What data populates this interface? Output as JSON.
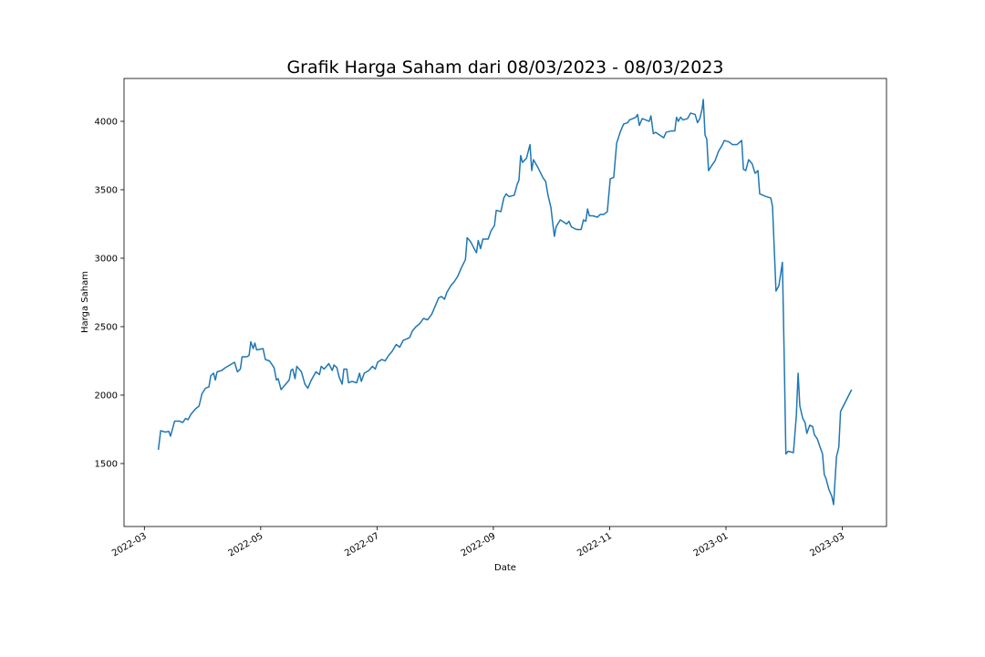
{
  "chart_data": {
    "type": "line",
    "title": "Grafik Harga Saham dari 08/03/2023 - 08/03/2023",
    "x_label": "Date",
    "y_label": "Harga Saham",
    "x": [
      0.24,
      0.28,
      0.36,
      0.42,
      0.45,
      0.52,
      0.6,
      0.66,
      0.71,
      0.75,
      0.8,
      0.88,
      0.94,
      0.99,
      1.05,
      1.11,
      1.14,
      1.19,
      1.22,
      1.25,
      1.33,
      1.39,
      1.47,
      1.55,
      1.6,
      1.65,
      1.68,
      1.76,
      1.8,
      1.83,
      1.87,
      1.9,
      1.93,
      2.04,
      2.08,
      2.15,
      2.23,
      2.27,
      2.3,
      2.35,
      2.43,
      2.49,
      2.52,
      2.55,
      2.59,
      2.62,
      2.7,
      2.76,
      2.81,
      2.87,
      2.95,
      3.01,
      3.04,
      3.09,
      3.17,
      3.23,
      3.26,
      3.31,
      3.35,
      3.4,
      3.43,
      3.48,
      3.51,
      3.57,
      3.65,
      3.7,
      3.73,
      3.78,
      3.86,
      3.92,
      3.97,
      4.01,
      4.08,
      4.14,
      4.2,
      4.26,
      4.33,
      4.39,
      4.45,
      4.51,
      4.56,
      4.61,
      4.67,
      4.73,
      4.8,
      4.87,
      4.94,
      5.0,
      5.06,
      5.11,
      5.16,
      5.2,
      5.27,
      5.33,
      5.39,
      5.45,
      5.52,
      5.55,
      5.61,
      5.67,
      5.71,
      5.74,
      5.78,
      5.82,
      5.91,
      5.96,
      6.02,
      6.05,
      6.13,
      6.18,
      6.22,
      6.27,
      6.36,
      6.41,
      6.44,
      6.47,
      6.5,
      6.57,
      6.63,
      6.66,
      6.69,
      6.77,
      6.85,
      6.9,
      6.94,
      6.99,
      7.02,
      7.05,
      7.08,
      7.15,
      7.19,
      7.26,
      7.3,
      7.34,
      7.38,
      7.43,
      7.51,
      7.55,
      7.59,
      7.62,
      7.65,
      7.71,
      7.79,
      7.84,
      7.9,
      7.96,
      8.01,
      8.07,
      8.12,
      8.18,
      8.24,
      8.31,
      8.34,
      8.4,
      8.45,
      8.48,
      8.51,
      8.56,
      8.62,
      8.68,
      8.71,
      8.75,
      8.79,
      8.86,
      8.93,
      8.97,
      9.06,
      9.12,
      9.15,
      9.18,
      9.22,
      9.26,
      9.34,
      9.39,
      9.47,
      9.51,
      9.55,
      9.59,
      9.61,
      9.64,
      9.67,
      9.7,
      9.76,
      9.81,
      9.87,
      9.94,
      9.97,
      10.05,
      10.11,
      10.19,
      10.27,
      10.3,
      10.34,
      10.39,
      10.45,
      10.5,
      10.55,
      10.58,
      10.69,
      10.77,
      10.8,
      10.86,
      10.91,
      10.97,
      11.0,
      11.03,
      11.07,
      11.16,
      11.21,
      11.24,
      11.27,
      11.32,
      11.36,
      11.39,
      11.44,
      11.49,
      11.52,
      11.57,
      11.61,
      11.66,
      11.69,
      11.72,
      11.77,
      11.82,
      11.85,
      11.9,
      11.94,
      11.97,
      12.16
    ],
    "series": [
      {
        "color": "#1f77b4",
        "values": [
          1600,
          1740,
          1730,
          1735,
          1700,
          1810,
          1810,
          1800,
          1830,
          1820,
          1860,
          1900,
          1920,
          2010,
          2050,
          2060,
          2140,
          2160,
          2110,
          2170,
          2180,
          2200,
          2220,
          2240,
          2170,
          2190,
          2280,
          2280,
          2290,
          2390,
          2340,
          2380,
          2330,
          2340,
          2260,
          2250,
          2200,
          2110,
          2120,
          2040,
          2080,
          2110,
          2180,
          2190,
          2120,
          2210,
          2170,
          2080,
          2050,
          2110,
          2170,
          2150,
          2210,
          2190,
          2230,
          2180,
          2220,
          2200,
          2130,
          2080,
          2190,
          2190,
          2090,
          2100,
          2090,
          2160,
          2100,
          2160,
          2180,
          2210,
          2190,
          2240,
          2260,
          2250,
          2290,
          2320,
          2370,
          2350,
          2400,
          2410,
          2420,
          2470,
          2500,
          2520,
          2560,
          2550,
          2590,
          2650,
          2710,
          2720,
          2700,
          2750,
          2800,
          2830,
          2870,
          2930,
          2990,
          3150,
          3120,
          3070,
          3040,
          3130,
          3070,
          3140,
          3140,
          3200,
          3240,
          3350,
          3340,
          3440,
          3470,
          3450,
          3460,
          3540,
          3570,
          3750,
          3700,
          3730,
          3830,
          3640,
          3720,
          3660,
          3590,
          3560,
          3460,
          3370,
          3260,
          3160,
          3230,
          3280,
          3270,
          3250,
          3270,
          3230,
          3220,
          3210,
          3210,
          3280,
          3270,
          3360,
          3310,
          3310,
          3300,
          3320,
          3320,
          3340,
          3580,
          3590,
          3840,
          3920,
          3980,
          3990,
          4010,
          4020,
          4030,
          4050,
          3970,
          4020,
          4010,
          4000,
          4040,
          3910,
          3920,
          3900,
          3880,
          3920,
          3930,
          3930,
          4030,
          4000,
          4030,
          4010,
          4020,
          4060,
          4050,
          3990,
          4020,
          4090,
          4160,
          3900,
          3870,
          3640,
          3680,
          3710,
          3780,
          3830,
          3860,
          3850,
          3830,
          3830,
          3860,
          3650,
          3640,
          3720,
          3690,
          3620,
          3640,
          3470,
          3450,
          3440,
          3380,
          2760,
          2800,
          2970,
          2300,
          1570,
          1590,
          1580,
          1850,
          2160,
          1920,
          1830,
          1800,
          1720,
          1780,
          1770,
          1710,
          1680,
          1630,
          1570,
          1420,
          1390,
          1310,
          1260,
          1200,
          1550,
          1620,
          1880,
          2040
        ]
      }
    ],
    "xlim": [
      -0.35,
      12.76
    ],
    "xticks": [
      {
        "value": 0,
        "label": "2022-03"
      },
      {
        "value": 2,
        "label": "2022-05"
      },
      {
        "value": 4,
        "label": "2022-07"
      },
      {
        "value": 6,
        "label": "2022-09"
      },
      {
        "value": 8,
        "label": "2022-11"
      },
      {
        "value": 10,
        "label": "2023-01"
      },
      {
        "value": 12,
        "label": "2023-03"
      }
    ],
    "ylim": [
      1040,
      4313
    ],
    "yticks": [
      1500,
      2000,
      2500,
      3000,
      3500,
      4000
    ]
  }
}
